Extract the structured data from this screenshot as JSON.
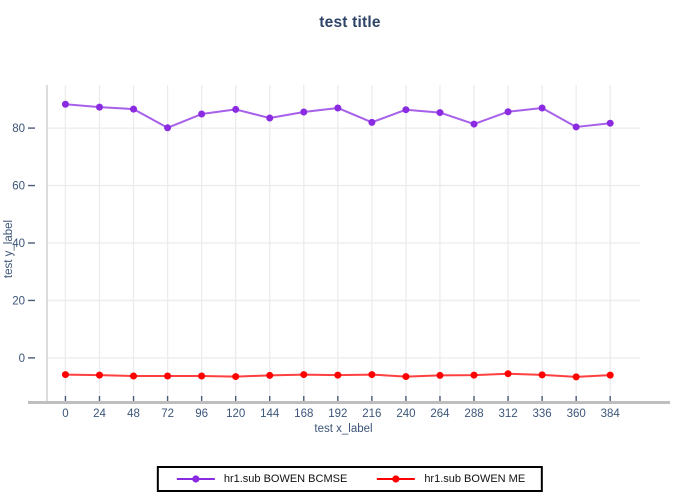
{
  "chart_data": {
    "type": "line",
    "title": "test title",
    "xlabel": "test x_label",
    "ylabel": "test y_label",
    "x": [
      0,
      24,
      48,
      72,
      96,
      120,
      144,
      168,
      192,
      216,
      240,
      264,
      288,
      312,
      336,
      360,
      384
    ],
    "y_ticks": [
      0,
      20,
      40,
      60,
      80
    ],
    "xlim": [
      -13,
      405
    ],
    "ylim": [
      -15,
      95
    ],
    "grid": true,
    "legend_position": "bottom-center",
    "series": [
      {
        "name": "hr1.sub BOWEN BCMSE",
        "color": "#8A2BE2",
        "marker": "circle",
        "values": [
          88.3,
          87.3,
          86.6,
          80.1,
          84.9,
          86.5,
          83.5,
          85.6,
          87.0,
          82.0,
          86.4,
          85.4,
          81.4,
          85.7,
          87.0,
          80.4,
          81.7
        ]
      },
      {
        "name": "hr1.sub BOWEN ME",
        "color": "#FF0000",
        "marker": "circle",
        "values": [
          -5.8,
          -6.0,
          -6.3,
          -6.3,
          -6.3,
          -6.5,
          -6.1,
          -5.8,
          -6.0,
          -5.8,
          -6.5,
          -6.1,
          -6.0,
          -5.5,
          -5.9,
          -6.6,
          -6.0
        ]
      }
    ]
  },
  "colors": {
    "title": "#2E4468",
    "tick_label": "#3C5578",
    "tick_mark": "#4A5A7A",
    "gridline": "#ECECEC",
    "left_spine": "#CCCCCC",
    "bottom_spine": "#BEBEBE",
    "background": "#FFFFFF",
    "legend_border": "#000000"
  }
}
